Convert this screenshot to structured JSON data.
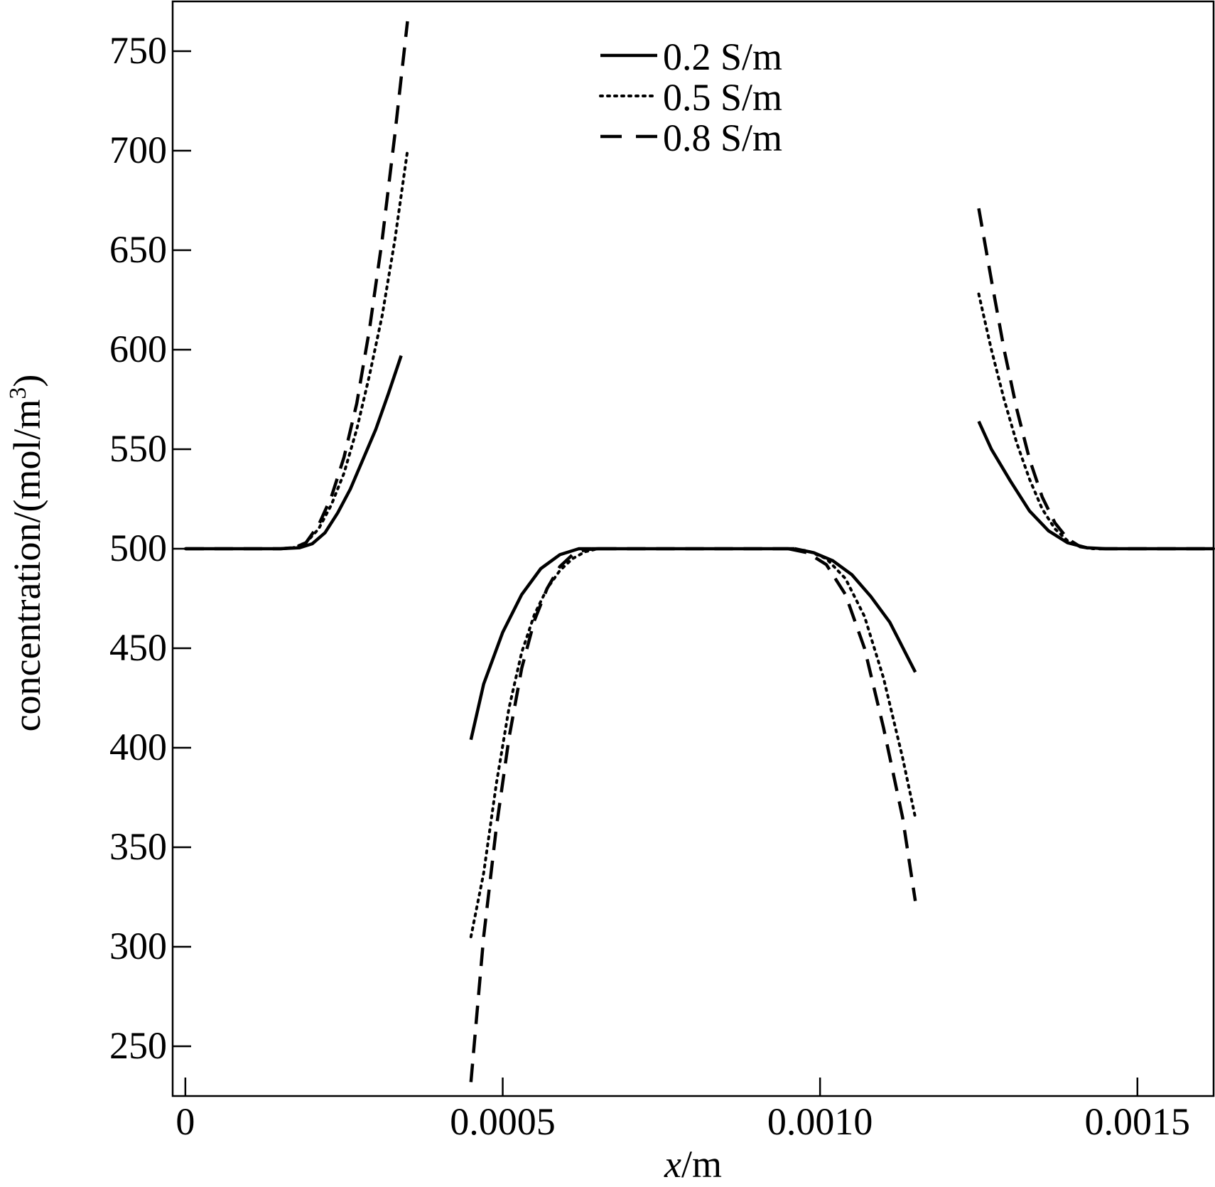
{
  "chart_data": {
    "type": "line",
    "title": "",
    "xlabel": "x",
    "xlabel_unit": "/m",
    "ylabel": "concentration/(mol/m",
    "ylabel_sup": "3",
    "ylabel_close": ")",
    "xlim": [
      -2e-05,
      0.00162
    ],
    "ylim": [
      225,
      775
    ],
    "x_ticks": [
      0,
      0.0005,
      0.001,
      0.0015
    ],
    "x_tick_labels": [
      "0",
      "0.0005",
      "0.0010",
      "0.0015"
    ],
    "y_ticks": [
      250,
      300,
      350,
      400,
      450,
      500,
      550,
      600,
      650,
      700,
      750
    ],
    "y_tick_labels": [
      "250",
      "300",
      "350",
      "400",
      "450",
      "500",
      "550",
      "600",
      "650",
      "700",
      "750"
    ],
    "grid": false,
    "legend_position": "top-center",
    "series": [
      {
        "name": "0.2 S/m",
        "style": "solid",
        "segments": [
          {
            "x": [
              0,
              0.00015,
              0.00018,
              0.0002,
              0.00022,
              0.00024,
              0.00026,
              0.00028,
              0.0003,
              0.00032,
              0.00034
            ],
            "y": [
              500,
              500,
              500.5,
              502.5,
              508,
              518,
              530,
              545,
              560,
              578,
              597
            ]
          },
          {
            "x": [
              0.00045,
              0.00047,
              0.0005,
              0.00053,
              0.00056,
              0.00059,
              0.00062,
              0.00064
            ],
            "y": [
              404,
              432,
              458,
              477,
              490,
              497,
              500,
              500
            ]
          },
          {
            "x": [
              0.00064,
              0.00096
            ],
            "y": [
              500,
              500
            ]
          },
          {
            "x": [
              0.00096,
              0.00099,
              0.00102,
              0.00105,
              0.00108,
              0.00111,
              0.00115
            ],
            "y": [
              500,
              498,
              494,
              487,
              476,
              463,
              438
            ]
          },
          {
            "x": [
              0.00125,
              0.00127,
              0.0013,
              0.00133,
              0.00136,
              0.00139,
              0.00142,
              0.00145,
              0.00162
            ],
            "y": [
              564,
              550,
              534,
              519,
              509,
              503,
              500.5,
              500,
              500
            ]
          }
        ]
      },
      {
        "name": "0.5 S/m",
        "style": "dotted",
        "segments": [
          {
            "x": [
              0,
              0.00015,
              0.00017,
              0.00019,
              0.00021,
              0.00023,
              0.00025,
              0.00027,
              0.00029,
              0.00031,
              0.00033,
              0.00035
            ],
            "y": [
              500,
              500,
              500.5,
              503,
              510,
              522,
              538,
              560,
              587,
              617,
              655,
              700
            ]
          },
          {
            "x": [
              0.00045,
              0.00047,
              0.00049,
              0.00051,
              0.00053,
              0.00055,
              0.00057,
              0.00059,
              0.00061,
              0.00063,
              0.00065
            ],
            "y": [
              305,
              337,
              382,
              420,
              448,
              467,
              480,
              489,
              495,
              498.5,
              500
            ]
          },
          {
            "x": [
              0.00065,
              0.00095
            ],
            "y": [
              500,
              500
            ]
          },
          {
            "x": [
              0.00095,
              0.00098,
              0.00101,
              0.00104,
              0.00107,
              0.0011,
              0.00113,
              0.00115
            ],
            "y": [
              500,
              499,
              495,
              485,
              466,
              435,
              395,
              365
            ]
          },
          {
            "x": [
              0.00125,
              0.00127,
              0.00129,
              0.00131,
              0.00133,
              0.00135,
              0.00137,
              0.00139,
              0.00141,
              0.00143,
              0.00162
            ],
            "y": [
              628,
              600,
              575,
              553,
              535,
              520,
              510,
              504,
              501,
              500,
              500
            ]
          }
        ]
      },
      {
        "name": "0.8 S/m",
        "style": "dashed",
        "segments": [
          {
            "x": [
              0,
              0.00015,
              0.00017,
              0.00019,
              0.00021,
              0.00023,
              0.00025,
              0.00027,
              0.00029,
              0.00031,
              0.00033,
              0.00035
            ],
            "y": [
              500,
              500,
              500.5,
              503,
              512,
              526,
              546,
              573,
              610,
              655,
              708,
              765
            ]
          },
          {
            "x": [
              0.00045,
              0.00047,
              0.00049,
              0.00051,
              0.00053,
              0.00055,
              0.00057,
              0.00059,
              0.00061,
              0.00063,
              0.00065
            ],
            "y": [
              232,
              305,
              360,
              405,
              440,
              464,
              480,
              491,
              497,
              499.5,
              500
            ]
          },
          {
            "x": [
              0.00065,
              0.00095
            ],
            "y": [
              500,
              500
            ]
          },
          {
            "x": [
              0.00095,
              0.00098,
              0.00101,
              0.00104,
              0.00107,
              0.0011,
              0.00113,
              0.00115
            ],
            "y": [
              500,
              498,
              492,
              477,
              450,
              410,
              365,
              323
            ]
          },
          {
            "x": [
              0.00125,
              0.00127,
              0.00129,
              0.00131,
              0.00133,
              0.00135,
              0.00137,
              0.00139,
              0.00141,
              0.00143,
              0.00162
            ],
            "y": [
              671,
              635,
              600,
              570,
              545,
              526,
              513,
              505,
              501,
              500,
              500
            ]
          }
        ]
      }
    ]
  }
}
